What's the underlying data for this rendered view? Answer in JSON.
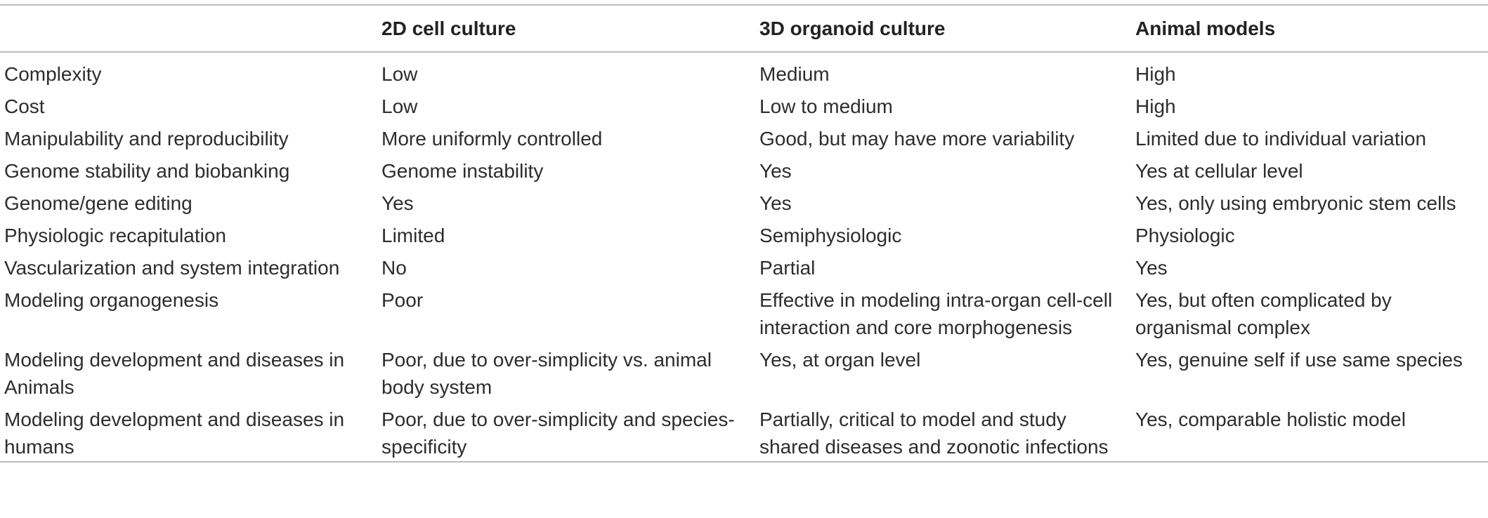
{
  "table": {
    "headers": [
      "",
      "2D cell culture",
      "3D organoid culture",
      "Animal models"
    ],
    "rows": [
      [
        "Complexity",
        "Low",
        "Medium",
        "High"
      ],
      [
        "Cost",
        "Low",
        "Low to medium",
        "High"
      ],
      [
        "Manipulability and reproducibility",
        "More uniformly controlled",
        "Good, but may have more variability",
        "Limited due to individual variation"
      ],
      [
        "Genome stability and biobanking",
        "Genome instability",
        "Yes",
        "Yes at cellular level"
      ],
      [
        "Genome/gene editing",
        "Yes",
        "Yes",
        "Yes, only using embryonic stem cells"
      ],
      [
        "Physiologic recapitulation",
        "Limited",
        "Semiphysiologic",
        "Physiologic"
      ],
      [
        "Vascularization and system integration",
        "No",
        "Partial",
        "Yes"
      ],
      [
        "Modeling organogenesis",
        "Poor",
        "Effective in modeling intra-organ cell-cell interaction and core morphogenesis",
        "Yes, but often complicated by organismal complex"
      ],
      [
        "Modeling development and diseases in Animals",
        "Poor, due to over-simplicity vs. animal body system",
        "Yes, at organ level",
        "Yes, genuine self if use same species"
      ],
      [
        "Modeling development and diseases in humans",
        "Poor, due to over-simplicity and species-specificity",
        "Partially, critical to model and study shared diseases and zoonotic infections",
        "Yes, comparable holistic model"
      ]
    ]
  }
}
